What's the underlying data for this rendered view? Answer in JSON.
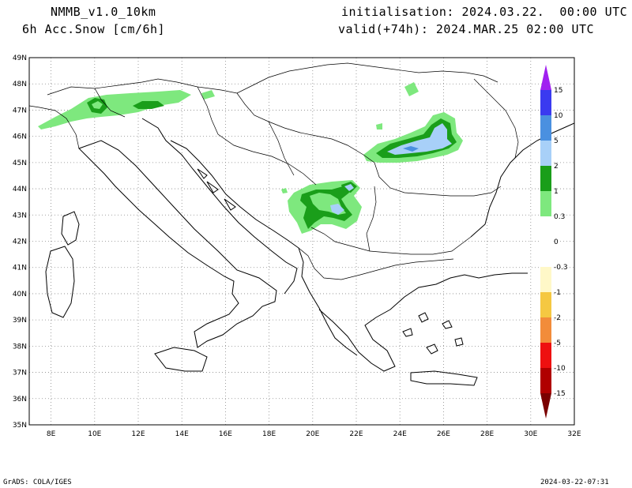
{
  "header": {
    "model": "NMMB_v1.0_10km",
    "field": "6h Acc.Snow [cm/6h]",
    "init": "initialisation: 2024.03.22.  00:00 UTC",
    "valid": "valid(+74h): 2024.MAR.25 02:00 UTC"
  },
  "footer": {
    "left": "GrADS: COLA/IGES",
    "right": "2024-03-22-07:31"
  },
  "map": {
    "lat_labels": [
      "49N",
      "48N",
      "47N",
      "46N",
      "45N",
      "44N",
      "43N",
      "42N",
      "41N",
      "40N",
      "39N",
      "38N",
      "37N",
      "36N",
      "35N"
    ],
    "lon_labels": [
      "8E",
      "10E",
      "12E",
      "14E",
      "16E",
      "18E",
      "20E",
      "22E",
      "24E",
      "26E",
      "28E",
      "30E",
      "32E"
    ],
    "lat_range": [
      35,
      49
    ],
    "lon_range": [
      7,
      32
    ],
    "grid": "dotted"
  },
  "legend": {
    "labels": [
      "15",
      "10",
      "5",
      "2",
      "1",
      "0.3",
      "0",
      "-0.3",
      "-1",
      "-2",
      "-5",
      "-10",
      "-15"
    ],
    "colors": {
      "purple": "#a020f0",
      "blue_dark": "#3a3af0",
      "blue_mid": "#4a90e0",
      "blue_light": "#a8d0f8",
      "green_dark": "#1a9e1a",
      "green_light": "#7ee87e",
      "white": "#ffffff",
      "cream": "#fff8c8",
      "yellow": "#f5c842",
      "orange": "#f28c3a",
      "red": "#ee1010",
      "red_dark": "#b00000",
      "maroon": "#7a0000"
    }
  }
}
